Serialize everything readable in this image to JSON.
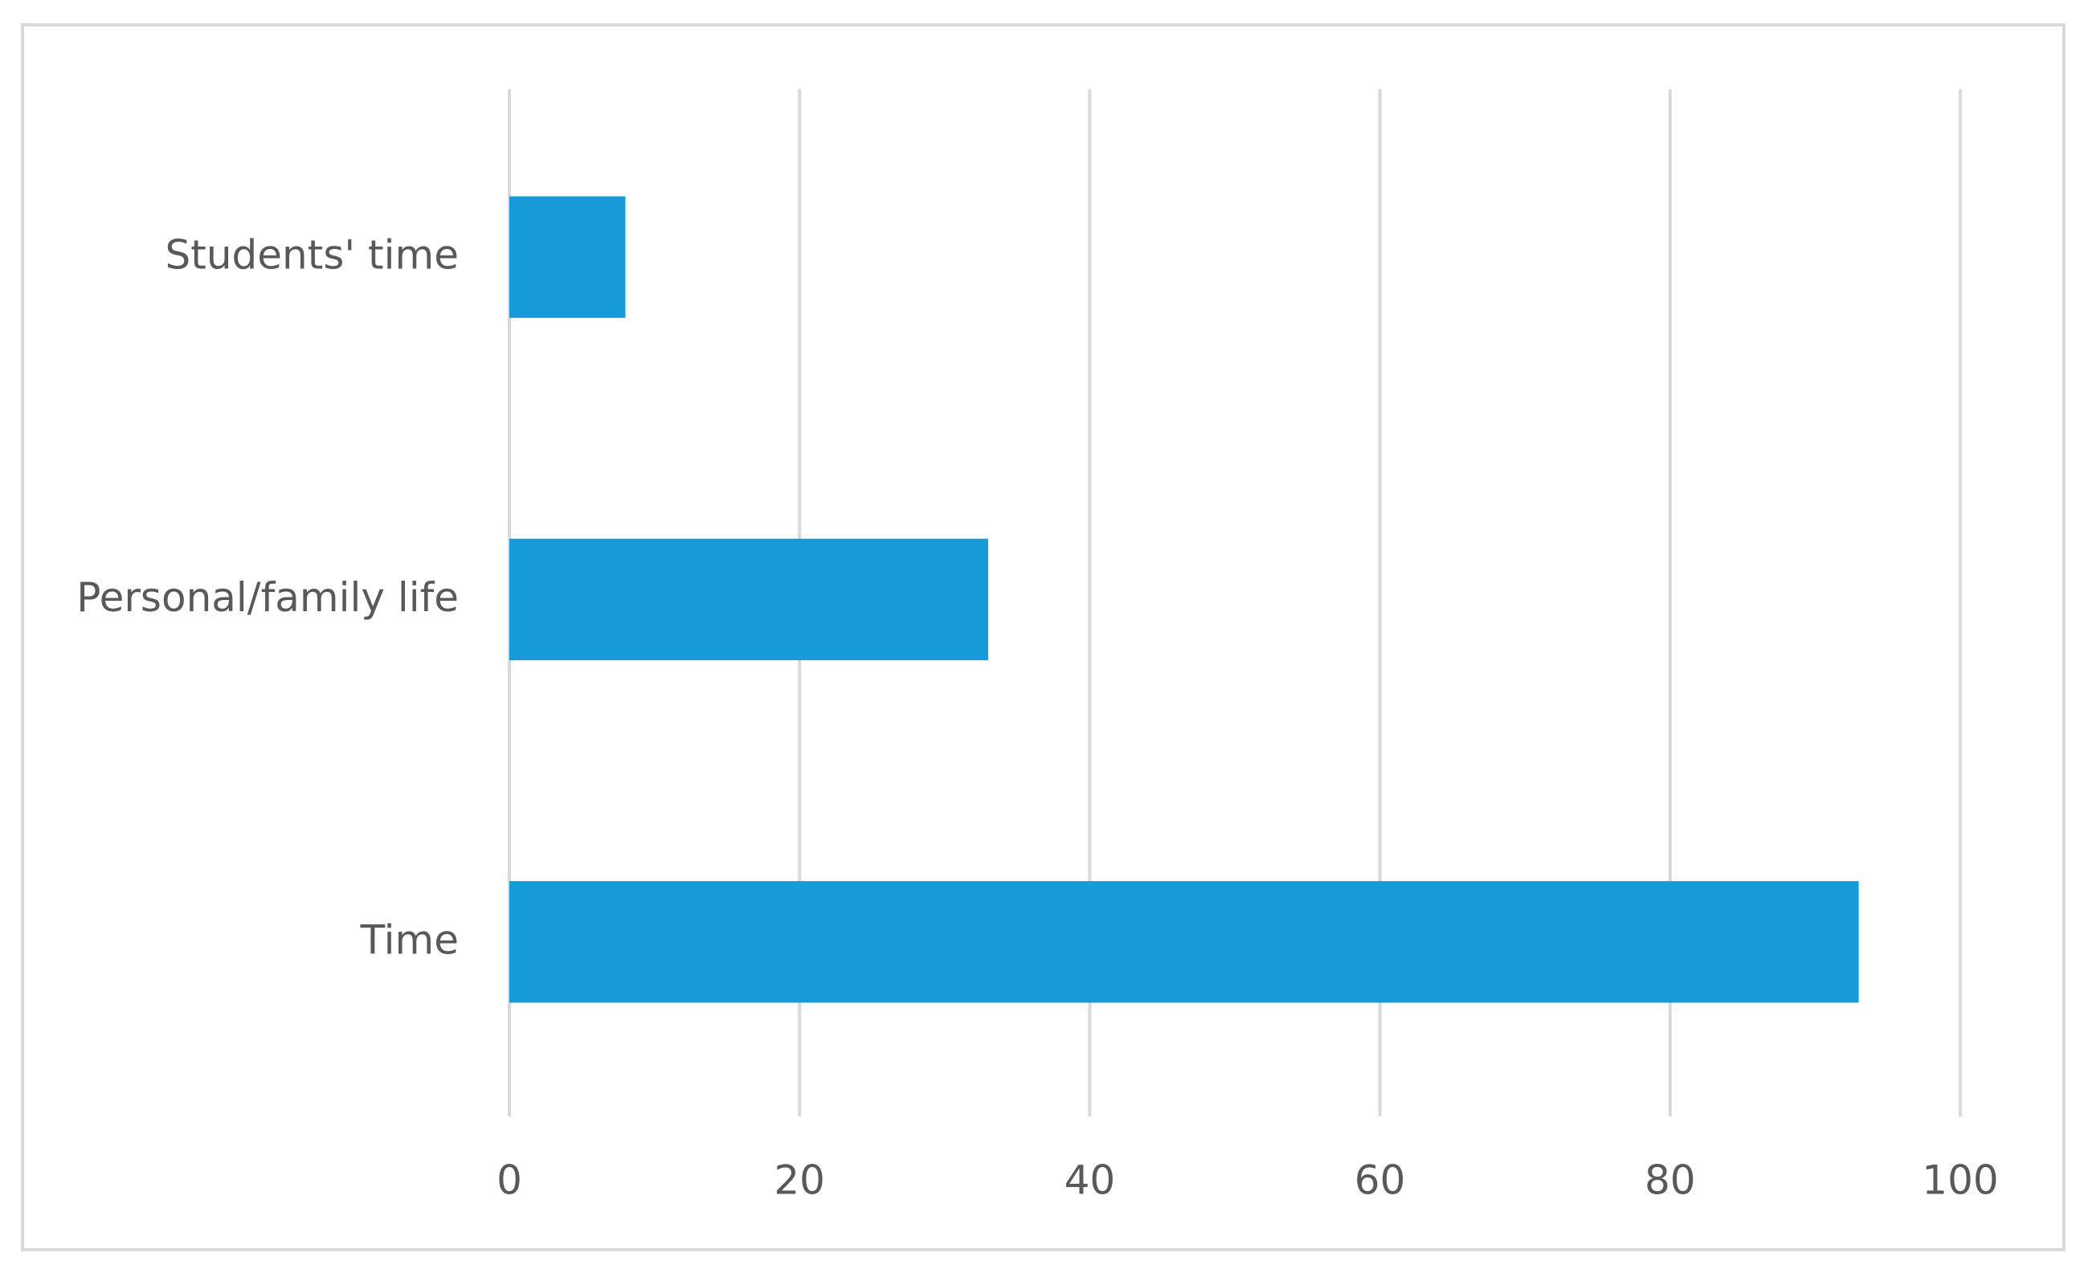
{
  "chart_data": {
    "type": "hbar",
    "categories": [
      "Students' time",
      "Personal/family life",
      "Time"
    ],
    "values": [
      8,
      33,
      93
    ],
    "color": "#169bd7",
    "xlim": [
      0,
      100
    ],
    "xticks": [
      0,
      20,
      40,
      60,
      80,
      100
    ],
    "grid": true
  }
}
